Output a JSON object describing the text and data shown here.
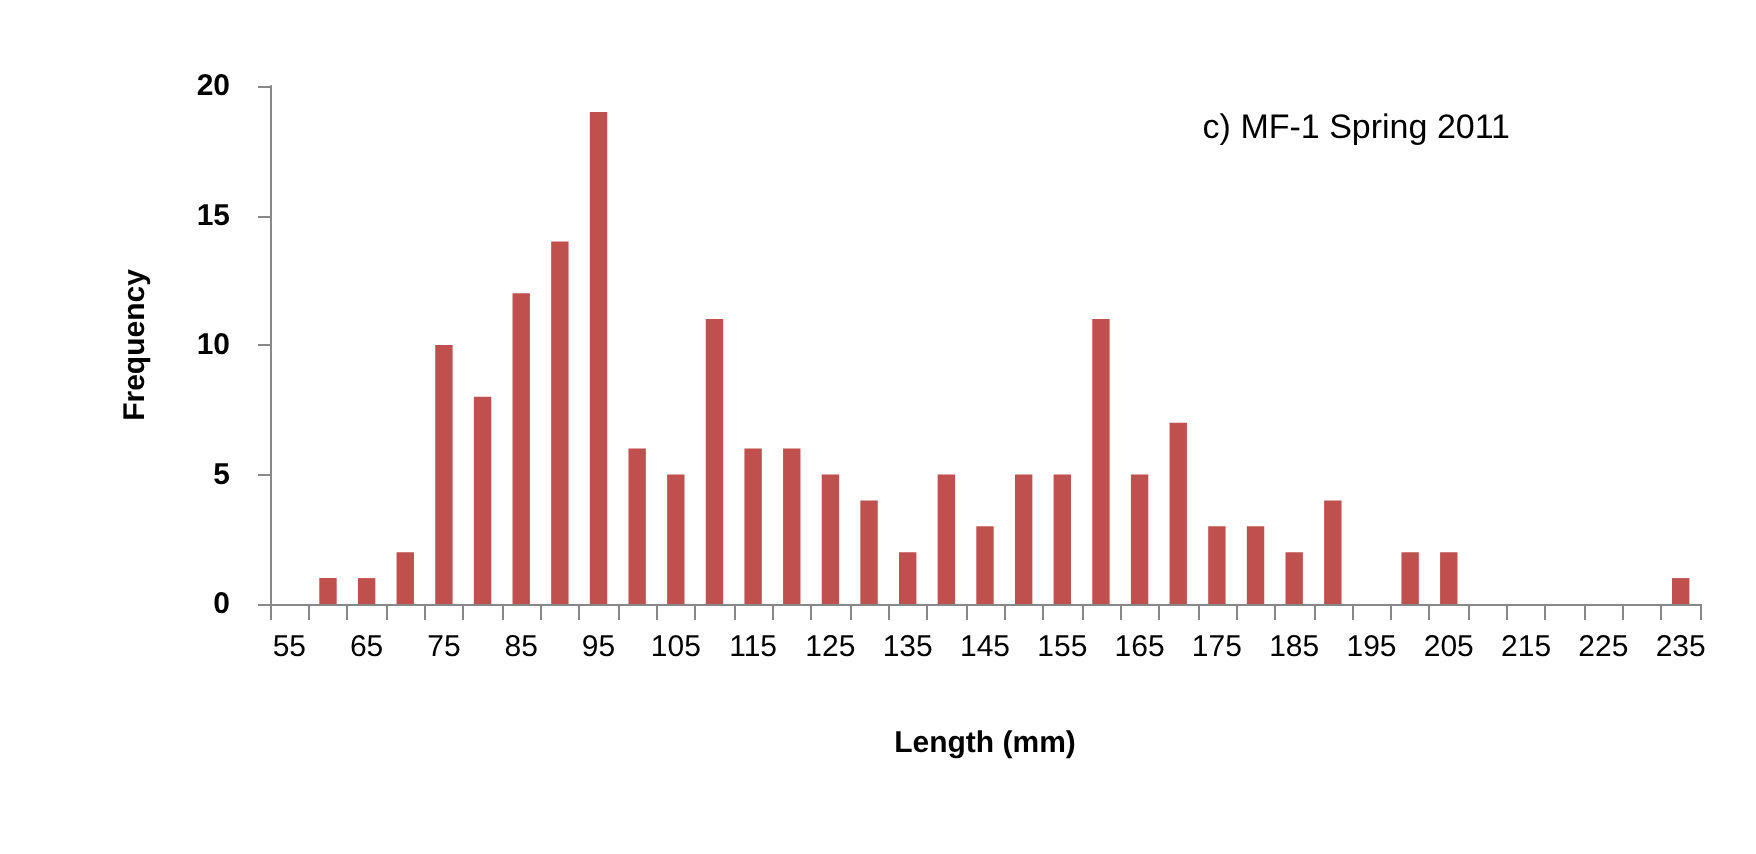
{
  "chart_data": {
    "type": "bar",
    "title": "c) MF-1 Spring 2011",
    "xlabel": "Length (mm)",
    "ylabel": "Frequency",
    "categories": [
      "55",
      null,
      "65",
      null,
      "75",
      null,
      "85",
      null,
      "95",
      null,
      "105",
      null,
      "115",
      null,
      "125",
      null,
      "135",
      null,
      "145",
      null,
      "155",
      null,
      "165",
      null,
      "175",
      null,
      "185",
      null,
      "195",
      null,
      "205",
      null,
      "215",
      null,
      "225",
      null,
      "235"
    ],
    "values": [
      0,
      1,
      1,
      2,
      10,
      8,
      12,
      14,
      19,
      6,
      5,
      11,
      6,
      6,
      5,
      4,
      2,
      5,
      3,
      5,
      5,
      11,
      5,
      7,
      3,
      3,
      2,
      4,
      0,
      2,
      2,
      0,
      0,
      0,
      0,
      0,
      1
    ],
    "color": "#c0504d",
    "ylim": [
      0,
      20
    ],
    "yticks": [
      0,
      5,
      10,
      15,
      20
    ],
    "grid": false
  }
}
